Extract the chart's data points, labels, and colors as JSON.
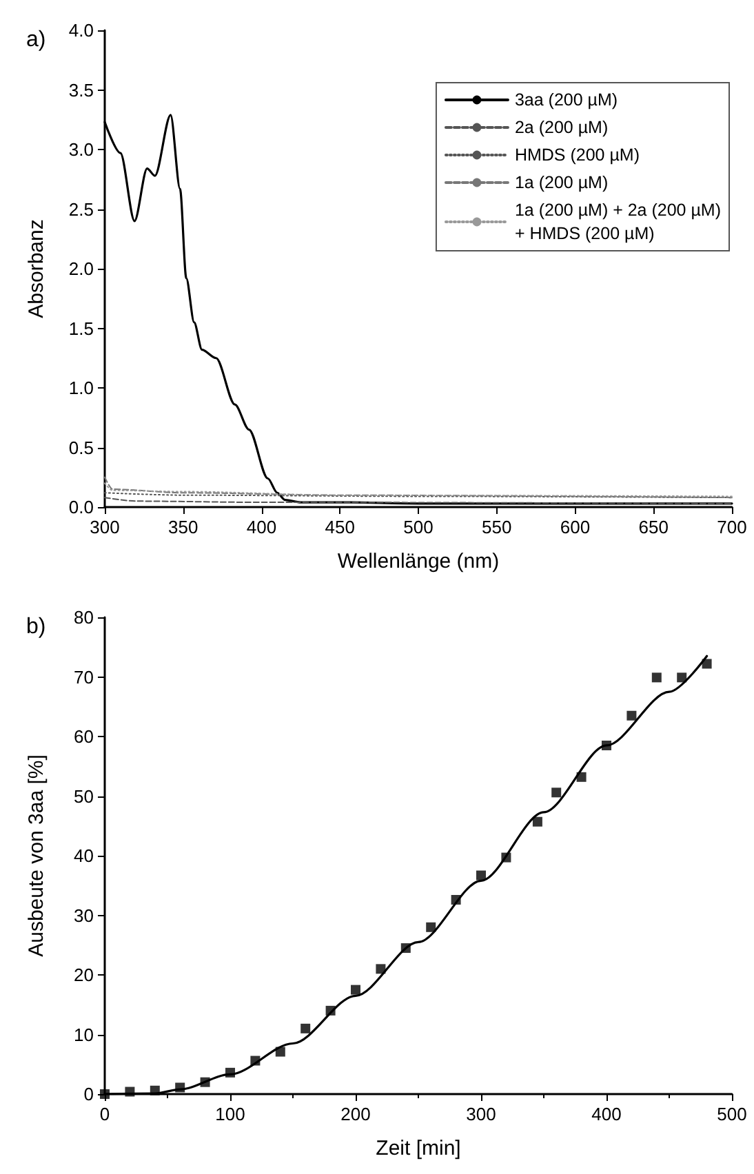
{
  "chart_data": [
    {
      "type": "line",
      "title": "a)",
      "xlabel": "Wellenlänge (nm)",
      "ylabel": "Absorbanz",
      "xlim": [
        300,
        700
      ],
      "xticks": [
        300,
        350,
        400,
        450,
        500,
        550,
        600,
        650,
        700
      ],
      "ylim": [
        0,
        4
      ],
      "yticks": [
        {
          "value": 0,
          "label": "0.0"
        },
        {
          "value": 0.5,
          "label": "0.5"
        },
        {
          "value": 1,
          "label": "1.0"
        },
        {
          "value": 1.5,
          "label": "1.5"
        },
        {
          "value": 2,
          "label": "2.0"
        },
        {
          "value": 2.5,
          "label": "2.5"
        },
        {
          "value": 3,
          "label": "3.0"
        },
        {
          "value": 3.5,
          "label": "3.5"
        },
        {
          "value": 4,
          "label": "4.0"
        }
      ],
      "grid": false,
      "legend": "top right",
      "marker": "none",
      "series": [
        {
          "name": "3aa (200 µM)",
          "color": "#000000",
          "line_style": "solid",
          "x": [
            300,
            310,
            319,
            327,
            332,
            342,
            348,
            352,
            357,
            362,
            371,
            383,
            392,
            404,
            410,
            415,
            425,
            450,
            500,
            600,
            700
          ],
          "values": [
            3.23,
            2.97,
            2.4,
            2.84,
            2.78,
            3.29,
            2.67,
            1.92,
            1.55,
            1.32,
            1.25,
            0.86,
            0.65,
            0.24,
            0.12,
            0.06,
            0.04,
            0.04,
            0.03,
            0.03,
            0.03
          ]
        },
        {
          "name": "2a (200 µM)",
          "color": "#555555",
          "line_style": "dashed",
          "x": [
            300,
            320,
            400,
            700
          ],
          "values": [
            0.08,
            0.05,
            0.04,
            0.03
          ]
        },
        {
          "name": "HMDS (200 µM)",
          "color": "#555555",
          "line_style": "dotted",
          "x": [
            300,
            350,
            500,
            700
          ],
          "values": [
            0.12,
            0.1,
            0.09,
            0.08
          ]
        },
        {
          "name": "1a (200 µM)",
          "color": "#777777",
          "line_style": "dashed",
          "x": [
            300,
            305,
            350,
            450,
            700
          ],
          "values": [
            0.25,
            0.15,
            0.12,
            0.1,
            0.08
          ]
        },
        {
          "name": "1a (200 µM) + 2a (200 µM)\n+ HMDS (200 µM)",
          "color": "#999999",
          "line_style": "dotted",
          "x": [
            300,
            305,
            350,
            450,
            700
          ],
          "values": [
            0.2,
            0.14,
            0.13,
            0.1,
            0.09
          ]
        }
      ]
    },
    {
      "type": "scatter",
      "title": "b)",
      "xlabel": "Zeit [min]",
      "ylabel": "Ausbeute von 3aa [%]",
      "xlim": [
        0,
        500
      ],
      "xticks": [
        0,
        100,
        200,
        300,
        400,
        500
      ],
      "ylim": [
        0,
        80
      ],
      "yticks": [
        0,
        10,
        20,
        30,
        40,
        50,
        60,
        70,
        80
      ],
      "grid": false,
      "series": [
        {
          "color": "#000000",
          "marker": "square",
          "x": [
            0,
            20,
            40,
            60,
            80,
            100,
            120,
            140,
            160,
            180,
            200,
            220,
            240,
            260,
            280,
            300,
            320,
            345,
            360,
            380,
            400,
            420,
            440,
            460,
            480
          ],
          "values": [
            0,
            0.4,
            0.6,
            1.1,
            2.0,
            3.6,
            5.6,
            7.1,
            11.0,
            14.0,
            17.5,
            21.0,
            24.5,
            28.0,
            32.6,
            36.7,
            39.7,
            45.7,
            50.6,
            53.2,
            58.5,
            63.5,
            69.9,
            69.9,
            72.2
          ]
        },
        {
          "type": "line",
          "color": "#000000",
          "marker": "none",
          "line_style": "solid",
          "x": [
            0,
            40,
            60,
            100,
            150,
            200,
            250,
            300,
            350,
            400,
            450,
            480
          ],
          "values": [
            0,
            0.1,
            0.8,
            3.3,
            8.5,
            16.5,
            25.5,
            35.8,
            47.3,
            58.5,
            67.5,
            73.5
          ]
        }
      ]
    }
  ]
}
